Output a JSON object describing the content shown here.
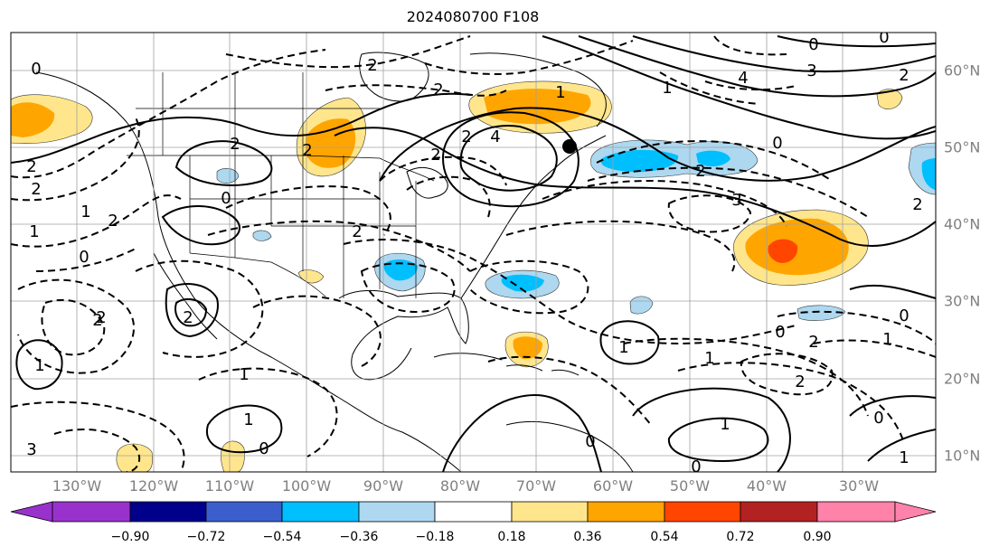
{
  "title": "2024080700 F108",
  "longitude_labels": [
    "130°W",
    "120°W",
    "110°W",
    "100°W",
    "90°W",
    "80°W",
    "70°W",
    "60°W",
    "50°W",
    "40°W",
    "30°W"
  ],
  "latitude_labels": [
    "60°N",
    "50°N",
    "40°N",
    "30°N",
    "20°N",
    "10°N"
  ],
  "colorbar": {
    "ticks": [
      "−0.90",
      "−0.72",
      "−0.54",
      "−0.36",
      "−0.18",
      "0.18",
      "0.36",
      "0.54",
      "0.72",
      "0.90"
    ],
    "colors": [
      "#9932cc",
      "#00008b",
      "#3a5fcd",
      "#00bfff",
      "#add8f0",
      "#ffffff",
      "#ffe68c",
      "#ffa500",
      "#ff4500",
      "#b22222",
      "#ff82ab"
    ]
  },
  "contour_labels": {
    "solid": [
      "2",
      "0",
      "2",
      "4",
      "0",
      "3",
      "1",
      "2",
      "2",
      "1",
      "0",
      "0",
      "1",
      "0",
      "1",
      "1"
    ],
    "dashed": [
      "2",
      "2",
      "2",
      "2",
      "1",
      "2",
      "1",
      "3",
      "2",
      "1",
      "2",
      "2",
      "2",
      "2",
      "2",
      "0",
      "4",
      "1",
      "0",
      "1",
      "0",
      "0",
      "0",
      "0",
      "2",
      "3",
      "0",
      "2",
      "1",
      "2",
      "1"
    ]
  },
  "markers": {
    "low_center": "black-dot"
  }
}
